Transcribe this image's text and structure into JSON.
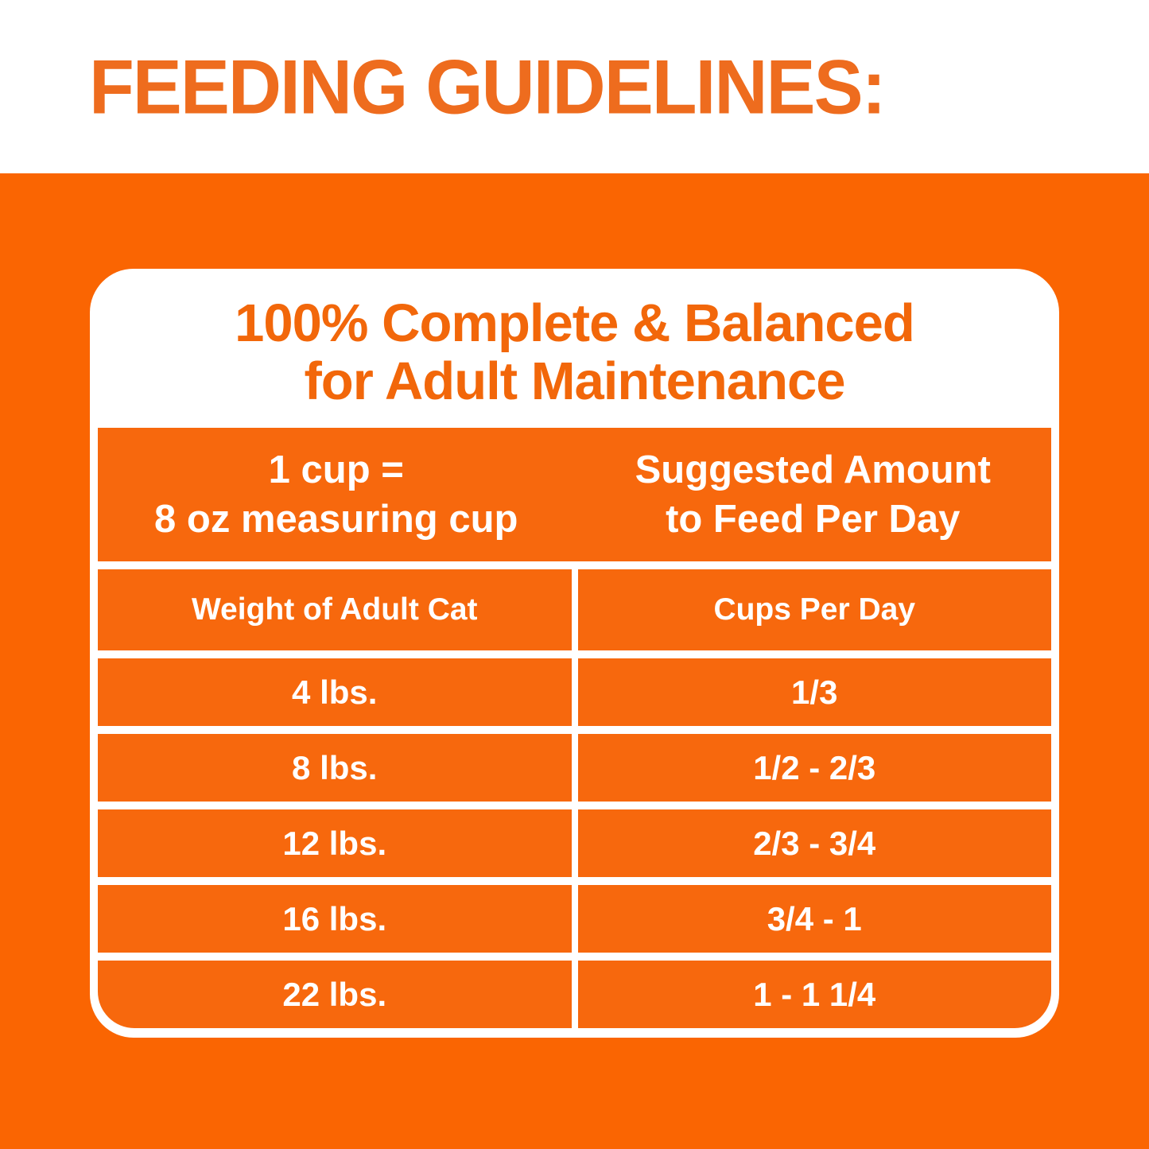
{
  "header": {
    "title": "FEEDING GUIDELINES:"
  },
  "card": {
    "title_line1": "100% Complete & Balanced",
    "title_line2": "for Adult Maintenance",
    "table": {
      "measuring_note_line1": "1 cup =",
      "measuring_note_line2": "8 oz measuring cup",
      "suggested_note_line1": "Suggested Amount",
      "suggested_note_line2": "to Feed Per Day",
      "weight_column_header": "Weight of Adult Cat",
      "cups_column_header": "Cups Per Day",
      "rows": [
        {
          "weight": "4 lbs.",
          "cups": "1/3"
        },
        {
          "weight": "8 lbs.",
          "cups": "1/2 - 2/3"
        },
        {
          "weight": "12 lbs.",
          "cups": "2/3 - 3/4"
        },
        {
          "weight": "16 lbs.",
          "cups": "3/4 - 1"
        },
        {
          "weight": "22 lbs.",
          "cups": "1 - 1 1/4"
        }
      ]
    }
  },
  "colors": {
    "page_background_orange": "#FA6502",
    "cell_orange": "#F7680D",
    "heading_text_orange": "#EE6C1E",
    "title_text_orange": "#F2670A",
    "card_white": "#FFFFFF",
    "table_text_white": "#FFFFFF"
  }
}
